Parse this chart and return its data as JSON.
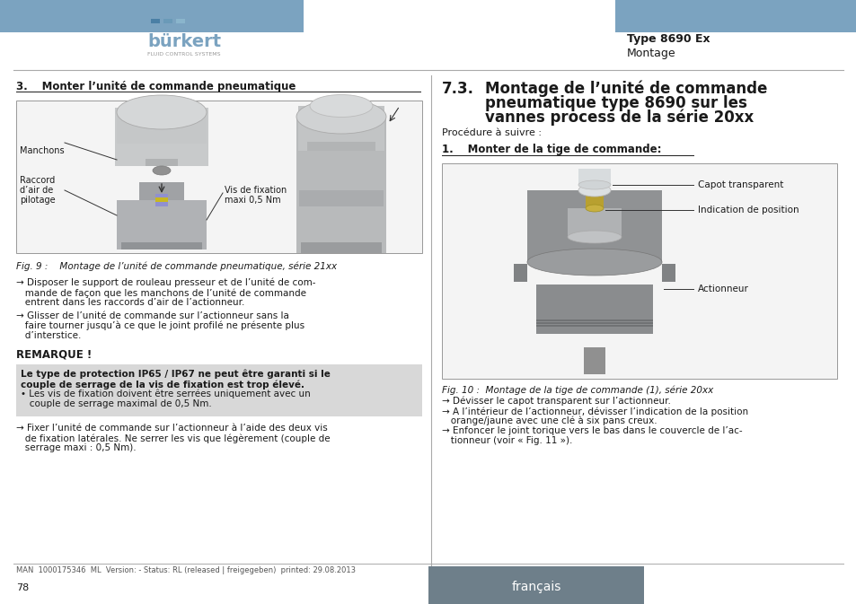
{
  "bg_color": "#ffffff",
  "header_bar_color": "#7ba3c0",
  "type_label": "Type 8690 Ex",
  "type_sublabel": "Montage",
  "left_section_title": "3.  Monter l’unité de commande pneumatique",
  "fig9_caption": "Fig. 9 :    Montage de l’unité de commande pneumatique, série 21xx",
  "manchons_label": "Manchons",
  "raccord_line1": "Raccord",
  "raccord_line2": "d’air de",
  "raccord_line3": "pilotage",
  "vis_line1": "Vis de fixation",
  "vis_line2": "maxi 0,5 Nm",
  "bullet1_line1": "→ Disposer le support de rouleau presseur et de l’unité de com-",
  "bullet1_line2": "   mande de façon que les manchons de l’unité de commande",
  "bullet1_line3": "   entrent dans les raccords d’air de l’actionneur.",
  "bullet2_line1": "→ Glisser de l’unité de commande sur l’actionneur sans la",
  "bullet2_line2": "   faire tourner jusqu’à ce que le joint profilé ne présente plus",
  "bullet2_line3": "   d’interstice.",
  "remarque_title": "REMARQUE !",
  "remarque_box_bold1": "Le type de protection IP65 / IP67 ne peut être garanti si le",
  "remarque_box_bold2": "couple de serrage de la vis de fixation est trop élevé.",
  "remarque_box_bullet1": "• Les vis de fixation doivent être serrées uniquement avec un",
  "remarque_box_bullet2": "   couple de serrage maximal de 0,5 Nm.",
  "bullet3_line1": "→ Fixer l’unité de commande sur l’actionneur à l’aide des deux vis",
  "bullet3_line2": "   de fixation latérales. Ne serrer les vis que légèrement (couple de",
  "bullet3_line3": "   serrage maxi : 0,5 Nm).",
  "right_num": "7.3.",
  "right_title1": "Montage de l’unité de commande",
  "right_title2": "pneumatique type 8690 sur les",
  "right_title3": "vannes process de la série 20xx",
  "procedure_label": "Procédure à suivre :",
  "step1_label": "1.  Monter de la tige de commande:",
  "capot_label": "Capot transparent",
  "indication_label": "Indication de position",
  "actionneur_label": "Actionneur",
  "fig10_caption": "Fig. 10 :  Montage de la tige de commande (1), série 20xx",
  "right_bullet1": "→ Dévisser le capot transparent sur l’actionneur.",
  "right_bullet2_1": "→ A l’intérieur de l’actionneur, dévisser l’indication de la position",
  "right_bullet2_2": "   orange/jaune avec une clé à six pans creux.",
  "right_bullet3_1": "→ Enfoncer le joint torique vers le bas dans le couvercle de l’ac-",
  "right_bullet3_2": "   tionneur (voir « Fig. 11 »).",
  "footer_man": "MAN  1000175346  ML  Version: - Status: RL (released | freigegeben)  printed: 29.08.2013",
  "footer_page": "78",
  "footer_lang_bg": "#6e7f8a",
  "footer_lang_text": "français",
  "separator_color": "#aaaaaa",
  "remarque_box_bg": "#d8d8d8",
  "text_color": "#1a1a1a"
}
